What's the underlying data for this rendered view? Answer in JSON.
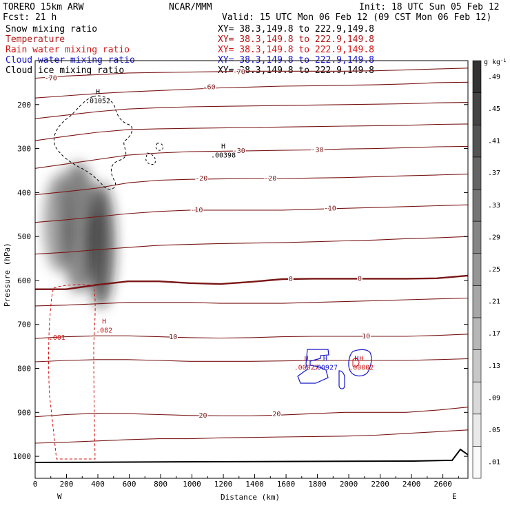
{
  "header": {
    "model": "TORERO  15km ARW",
    "center": "NCAR/MMM",
    "init": "Init: 18 UTC Sun 05 Feb 12",
    "fcst": "Fcst:    21 h",
    "valid": "Valid: 15 UTC Mon 06 Feb 12 (09 CST Mon 06 Feb 12)"
  },
  "fields": [
    {
      "name": "Snow mixing ratio",
      "color": "#000000",
      "xy": ""
    },
    {
      "name": "Temperature",
      "color": "#b01818",
      "xy": "XY=  38.3,149.8 to 222.9,149.8"
    },
    {
      "name": "Rain water mixing ratio",
      "color": "#d21414",
      "xy": "XY=  38.3,149.8 to 222.9,149.8"
    },
    {
      "name": "Cloud water mixing ratio",
      "color": "#1515c8",
      "xy": "XY=  38.3,149.8 to 222.9,149.8"
    },
    {
      "name": "Cloud ice mixing ratio",
      "color": "#000000",
      "xy": "XY=  38.3,149.8 to 222.9,149.8"
    }
  ],
  "first_xy": "XY=  38.3,149.8 to 222.9,149.8",
  "chart_data": {
    "type": "contour-cross-section",
    "xlabel": "Distance (km)",
    "ylabel": "Pressure (hPa)",
    "xlim": [
      0,
      2760
    ],
    "ylim": [
      1050,
      100
    ],
    "x_ticks": [
      0,
      200,
      400,
      600,
      800,
      1000,
      1200,
      1400,
      1600,
      1800,
      2000,
      2200,
      2400,
      2600
    ],
    "y_ticks": [
      200,
      300,
      400,
      500,
      600,
      700,
      800,
      900,
      1000
    ],
    "x_end_labels": {
      "left": "W",
      "right": "E"
    },
    "colorbar": {
      "unit": "g kg",
      "unit_sup": "-1",
      "levels": [
        0.01,
        0.05,
        0.09,
        0.13,
        0.17,
        0.21,
        0.25,
        0.29,
        0.33,
        0.37,
        0.41,
        0.45,
        0.49
      ],
      "labels": [
        ".01",
        ".05",
        ".09",
        ".13",
        ".17",
        ".21",
        ".25",
        ".29",
        ".33",
        ".37",
        ".41",
        ".45",
        ".49"
      ]
    },
    "temperature_isotherms": [
      {
        "t": -70,
        "p": [
          140,
          135,
          132,
          128,
          127,
          126,
          125,
          124,
          124,
          124,
          124,
          123,
          121,
          119,
          117
        ]
      },
      {
        "t": -60,
        "p": [
          185,
          180,
          175,
          171,
          168,
          165,
          162,
          160,
          158,
          157,
          156,
          155,
          153,
          150,
          149
        ]
      },
      {
        "t": -50,
        "p": [
          232,
          224,
          216,
          210,
          207,
          205,
          204,
          203,
          202,
          201,
          200,
          199,
          198,
          196,
          195
        ]
      },
      {
        "t": -40,
        "p": [
          282,
          272,
          263,
          257,
          255,
          254,
          253,
          252,
          251,
          250,
          249,
          248,
          247,
          245,
          244
        ]
      },
      {
        "t": -30,
        "p": [
          345,
          335,
          325,
          315,
          310,
          307,
          306,
          305,
          304,
          303,
          301,
          300,
          298,
          296,
          295
        ]
      },
      {
        "t": -20,
        "p": [
          405,
          398,
          390,
          378,
          372,
          370,
          369,
          368,
          368,
          367,
          366,
          364,
          362,
          360,
          358
        ]
      },
      {
        "t": -10,
        "p": [
          468,
          462,
          455,
          448,
          443,
          440,
          440,
          440,
          440,
          438,
          436,
          434,
          432,
          430,
          428
        ]
      },
      {
        "t": -5,
        "p": [
          540,
          536,
          530,
          525,
          520,
          518,
          516,
          515,
          514,
          512,
          510,
          508,
          505,
          503,
          500
        ]
      },
      {
        "t": 0,
        "p": [
          620,
          620,
          610,
          602,
          602,
          606,
          608,
          603,
          597,
          596,
          596,
          596,
          596,
          595,
          589
        ]
      },
      {
        "t": 5,
        "p": [
          658,
          656,
          653,
          650,
          650,
          650,
          652,
          652,
          652,
          650,
          648,
          646,
          644,
          642,
          640
        ]
      },
      {
        "t": 10,
        "p": [
          732,
          728,
          726,
          726,
          728,
          730,
          731,
          730,
          728,
          727,
          727,
          727,
          727,
          725,
          722
        ]
      },
      {
        "t": 15,
        "p": [
          785,
          782,
          780,
          780,
          782,
          784,
          784,
          784,
          783,
          782,
          782,
          782,
          782,
          780,
          778
        ]
      },
      {
        "t": 20,
        "p": [
          910,
          905,
          902,
          903,
          905,
          907,
          908,
          908,
          906,
          903,
          900,
          900,
          900,
          895,
          888
        ]
      },
      {
        "t": 25,
        "p": [
          970,
          968,
          965,
          962,
          960,
          960,
          958,
          957,
          956,
          955,
          954,
          952,
          948,
          944,
          940
        ]
      }
    ],
    "temperature_labels": [
      {
        "x": 100,
        "p": 140,
        "text": "-70"
      },
      {
        "x": 1300,
        "p": 126,
        "text": "-70"
      },
      {
        "x": 1110,
        "p": 160,
        "text": "-60"
      },
      {
        "x": 1300,
        "p": 305,
        "text": "-30"
      },
      {
        "x": 1800,
        "p": 303,
        "text": "-30"
      },
      {
        "x": 1060,
        "p": 368,
        "text": "-20"
      },
      {
        "x": 1500,
        "p": 368,
        "text": "-20"
      },
      {
        "x": 1030,
        "p": 440,
        "text": "-10"
      },
      {
        "x": 1880,
        "p": 436,
        "text": "-10"
      },
      {
        "x": 2070,
        "p": 596,
        "text": "0"
      },
      {
        "x": 1630,
        "p": 597,
        "text": "0"
      },
      {
        "x": 880,
        "p": 729,
        "text": "10"
      },
      {
        "x": 2110,
        "p": 727,
        "text": "10"
      },
      {
        "x": 1070,
        "p": 907,
        "text": "20"
      },
      {
        "x": 1540,
        "p": 904,
        "text": "20"
      }
    ],
    "highs": [
      {
        "x": 400,
        "p": 182,
        "label": ".01052",
        "series": "ice"
      },
      {
        "x": 1200,
        "p": 306,
        "label": ".00398",
        "series": "ice"
      },
      {
        "x": 440,
        "p": 704,
        "label": ".082",
        "series": "rain"
      },
      {
        "x": 1730,
        "p": 789,
        "label": ".00027",
        "series": "rain"
      },
      {
        "x": 2080,
        "p": 789,
        "label": ".00002",
        "series": "rain"
      },
      {
        "x": 1850,
        "p": 789,
        "label": ".00927",
        "series": "cloud"
      },
      {
        "x": 2050,
        "p": 789,
        "label": "",
        "series": "cloud"
      }
    ],
    "rain_labels": [
      {
        "x": 140,
        "p": 730,
        "text": ".001"
      }
    ],
    "snow_core": {
      "x": [
        0,
        450
      ],
      "p": [
        350,
        650
      ],
      "peak": 0.45
    }
  }
}
